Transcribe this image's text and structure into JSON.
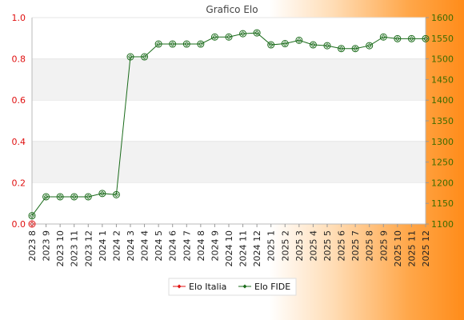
{
  "chart_data": {
    "type": "line",
    "title": "Grafico Elo",
    "categories": [
      "2023 8",
      "2023 9",
      "2023 10",
      "2023 11",
      "2023 12",
      "2024 1",
      "2024 2",
      "2024 3",
      "2024 4",
      "2024 5",
      "2024 6",
      "2024 7",
      "2024 8",
      "2024 9",
      "2024 10",
      "2024 11",
      "2024 12",
      "2025 1",
      "2025 2",
      "2025 3",
      "2025 4",
      "2025 5",
      "2025 6",
      "2025 7",
      "2025 8",
      "2025 9",
      "2025 10",
      "2025 11",
      "2025 12"
    ],
    "y_left": {
      "range": [
        0,
        1
      ],
      "ticks": [
        "0.0",
        "0.2",
        "0.4",
        "0.6",
        "0.8",
        "1.0"
      ],
      "color": "#e01010"
    },
    "y_right": {
      "range": [
        1100,
        1600
      ],
      "ticks": [
        "1100",
        "1150",
        "1200",
        "1250",
        "1300",
        "1350",
        "1400",
        "1450",
        "1500",
        "1550",
        "1600"
      ],
      "color": "#3d6b00"
    },
    "series": [
      {
        "name": "Elo Italia",
        "axis": "left",
        "color": "#e01010",
        "values": [
          0,
          null,
          null,
          null,
          null,
          null,
          null,
          null,
          null,
          null,
          null,
          null,
          null,
          null,
          null,
          null,
          null,
          null,
          null,
          null,
          null,
          null,
          null,
          null,
          null,
          null,
          null,
          null,
          null
        ]
      },
      {
        "name": "Elo FIDE",
        "axis": "right",
        "color": "#1a6b1a",
        "values": [
          1120,
          1166,
          1166,
          1166,
          1166,
          1174,
          1171,
          1505,
          1505,
          1536,
          1536,
          1536,
          1536,
          1553,
          1553,
          1561,
          1563,
          1534,
          1537,
          1545,
          1534,
          1532,
          1525,
          1525,
          1532,
          1553,
          1549,
          1549,
          1549
        ]
      }
    ],
    "grid": "horizontal alternating bands",
    "legend_position": "bottom"
  }
}
